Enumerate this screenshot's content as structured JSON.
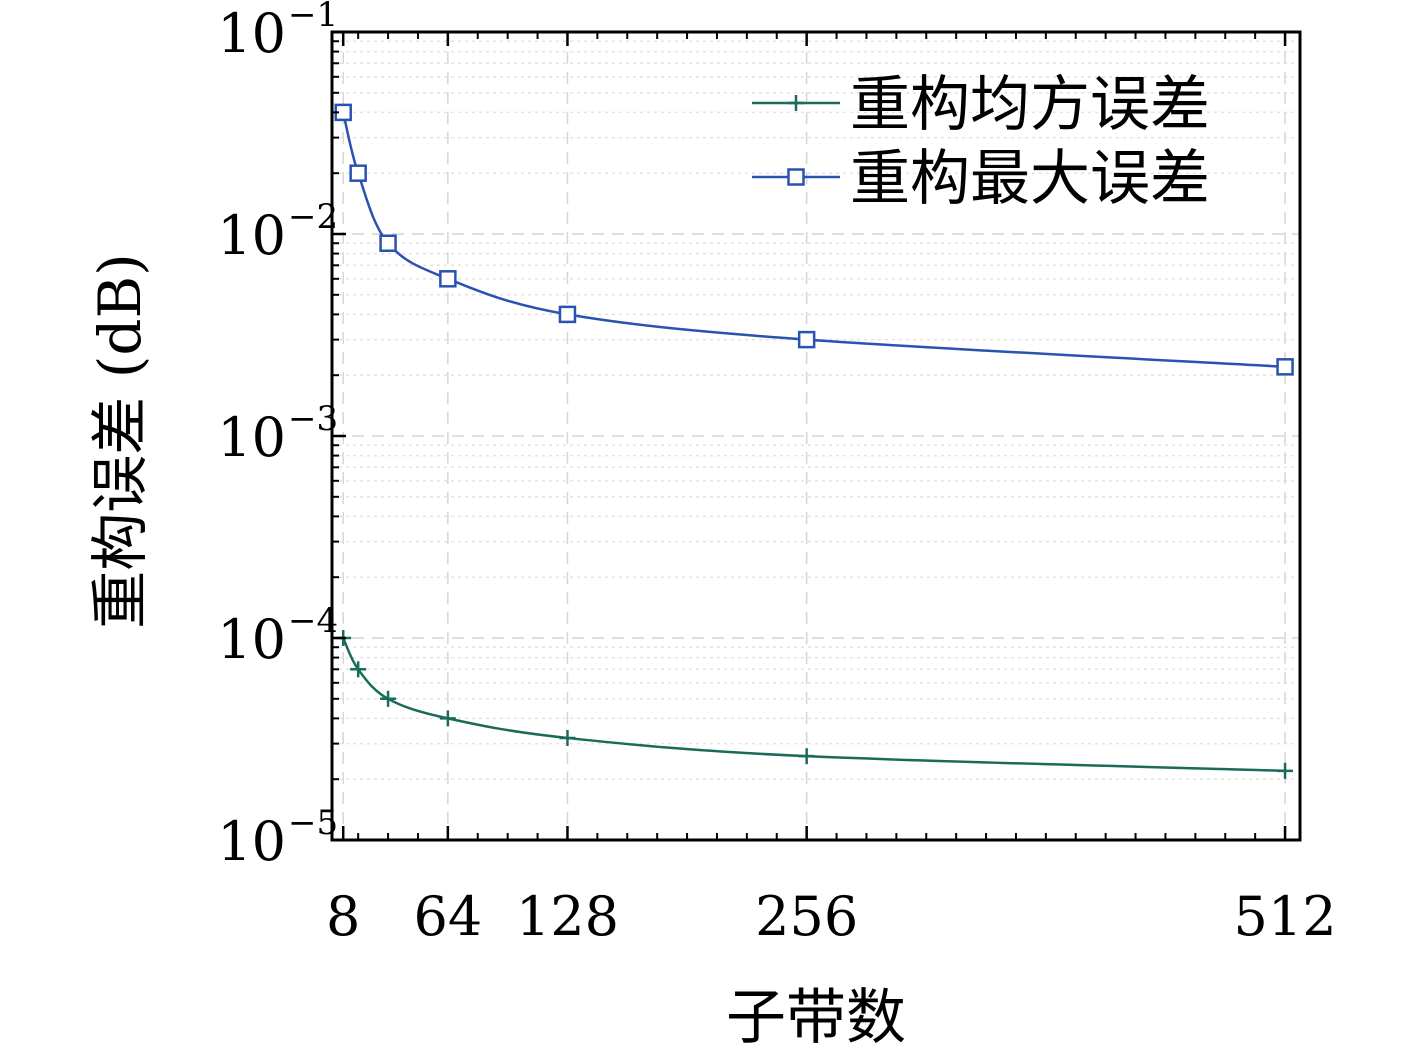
{
  "chart_data": {
    "type": "line",
    "xlabel": "子带数",
    "ylabel": "重构误差 (dB)",
    "x": [
      8,
      16,
      32,
      64,
      128,
      256,
      512
    ],
    "x_ticks": [
      8,
      64,
      128,
      256,
      512
    ],
    "x_tick_labels": [
      "8",
      "64",
      "128",
      "256",
      "512"
    ],
    "xlim": [
      2,
      520
    ],
    "yscale": "log",
    "ylim": [
      1e-05,
      0.1
    ],
    "y_ticks": [
      {
        "value": 0.1,
        "base": "10",
        "exp": "−1"
      },
      {
        "value": 0.01,
        "base": "10",
        "exp": "−2"
      },
      {
        "value": 0.001,
        "base": "10",
        "exp": "−3"
      },
      {
        "value": 0.0001,
        "base": "10",
        "exp": "−4"
      },
      {
        "value": 1e-05,
        "base": "10",
        "exp": "−5"
      }
    ],
    "grid": true,
    "legend_position": "top-right",
    "series": [
      {
        "name": "重构均方误差",
        "marker": "plus",
        "color": "#1a6b5a",
        "values": [
          0.0001,
          7e-05,
          5e-05,
          4e-05,
          3.2e-05,
          2.6e-05,
          2.2e-05
        ]
      },
      {
        "name": "重构最大误差",
        "marker": "square",
        "color": "#2a52b0",
        "values": [
          0.04,
          0.02,
          0.009,
          0.006,
          0.004,
          0.003,
          0.0022
        ]
      }
    ]
  }
}
